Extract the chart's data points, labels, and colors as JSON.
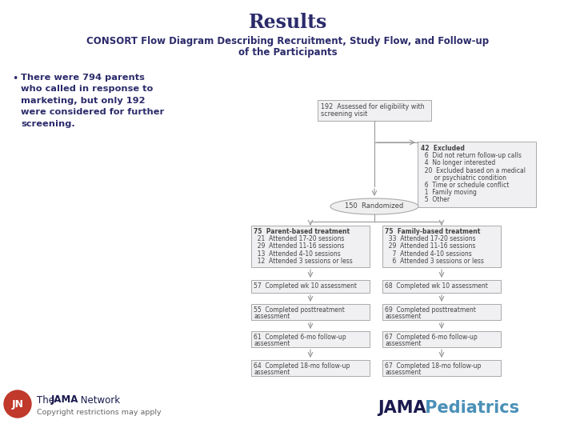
{
  "title": "Results",
  "subtitle_line1": "CONSORT Flow Diagram Describing Recruitment, Study Flow, and Follow-up",
  "subtitle_line2": "of the Participants",
  "bullet_char": "•",
  "bullet_text": "There were 794 parents\nwho called in response to\nmarketing, but only 192\nwere considered for further\nscreening.",
  "bg_color": "#ffffff",
  "title_color": "#2b2b6b",
  "subtitle_color": "#2b2b6b",
  "bullet_color": "#2b2b6b",
  "box_fill": "#f0f0f2",
  "box_edge": "#aaaaaa",
  "box_text_color": "#444444",
  "arrow_color": "#999999",
  "ellipse_fill": "#efefef",
  "ellipse_edge": "#aaaaaa",
  "jama_dark": "#1a1a4e",
  "jama_blue": "#4a90b8",
  "logo_red": "#c0392b",
  "footer_copy": "Copyright restrictions may apply",
  "consort_top_box_line1": "192  Assessed for eligibility with",
  "consort_top_box_line2": "screening visit",
  "excl_lines": [
    "42  Excluded",
    "  6  Did not return follow-up calls",
    "  4  No longer interested",
    "  20  Excluded based on a medical",
    "       or psychiatric condition",
    "  6  Time or schedule conflict",
    "  1  Family moving",
    "  5  Other"
  ],
  "randomized_label": "150  Randomized",
  "left_arm_lines": [
    "75  Parent-based treatment",
    "  21  Attended 17-20 sessions",
    "  29  Attended 11-16 sessions",
    "  13  Attended 4-10 sessions",
    "  12  Attended 3 sessions or less"
  ],
  "right_arm_lines": [
    "75  Family-based treatment",
    "  33  Attended 17-20 sessions",
    "  29  Attended 11-16 sessions",
    "    7  Attended 4-10 sessions",
    "    6  Attended 3 sessions or less"
  ],
  "left_wk10_line": "57  Completed wk 10 assessment",
  "right_wk10_line": "68  Completed wk 10 assessment",
  "left_post_lines": [
    "55  Completed posttreatment",
    "assessment"
  ],
  "right_post_lines": [
    "69  Completed posttreatment",
    "assessment"
  ],
  "left_6mo_lines": [
    "61  Completed 6-mo follow-up",
    "assessment"
  ],
  "right_6mo_lines": [
    "67  Completed 6-mo follow-up",
    "assessment"
  ],
  "left_18mo_lines": [
    "64  Completed 18-mo follow-up",
    "assessment"
  ],
  "right_18mo_lines": [
    "67  Completed 18-mo follow-up",
    "assessment"
  ]
}
